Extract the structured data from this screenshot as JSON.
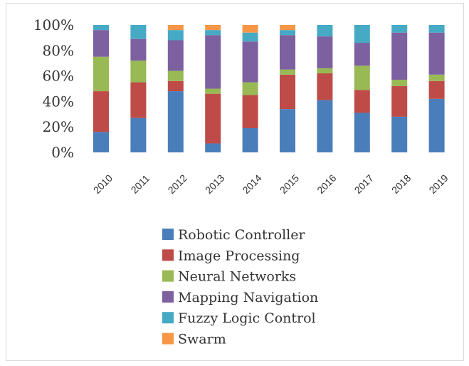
{
  "chart_data": {
    "type": "bar",
    "stacked": true,
    "percent": true,
    "title": "",
    "xlabel": "",
    "ylabel": "",
    "ylim": [
      0,
      100
    ],
    "yticks": [
      "0%",
      "20%",
      "40%",
      "60%",
      "80%",
      "100%"
    ],
    "grid": false,
    "legend": "bottom",
    "categories": [
      "2010",
      "2011",
      "2012",
      "2013",
      "2014",
      "2015",
      "2016",
      "2017",
      "2018",
      "2019"
    ],
    "series": [
      {
        "name": "Robotic Controller",
        "color": "#4a7ebb",
        "values": [
          16,
          27,
          48,
          7,
          19,
          34,
          41,
          31,
          28,
          42
        ]
      },
      {
        "name": "Image Processing",
        "color": "#be4b48",
        "values": [
          32,
          28,
          8,
          39,
          26,
          27,
          21,
          18,
          24,
          14
        ]
      },
      {
        "name": "Neural Networks",
        "color": "#98b954",
        "values": [
          27,
          17,
          8,
          4,
          10,
          4,
          4,
          19,
          5,
          5
        ]
      },
      {
        "name": "Mapping Navigation",
        "color": "#7d60a0",
        "values": [
          21,
          17,
          24,
          42,
          32,
          27,
          25,
          18,
          37,
          33
        ]
      },
      {
        "name": "Fuzzy Logic Control",
        "color": "#46aac5",
        "values": [
          4,
          11,
          8,
          4,
          7,
          4,
          9,
          14,
          6,
          6
        ]
      },
      {
        "name": "Swarm",
        "color": "#f79646",
        "values": [
          0,
          0,
          4,
          4,
          6,
          4,
          0,
          0,
          0,
          0
        ]
      }
    ]
  }
}
